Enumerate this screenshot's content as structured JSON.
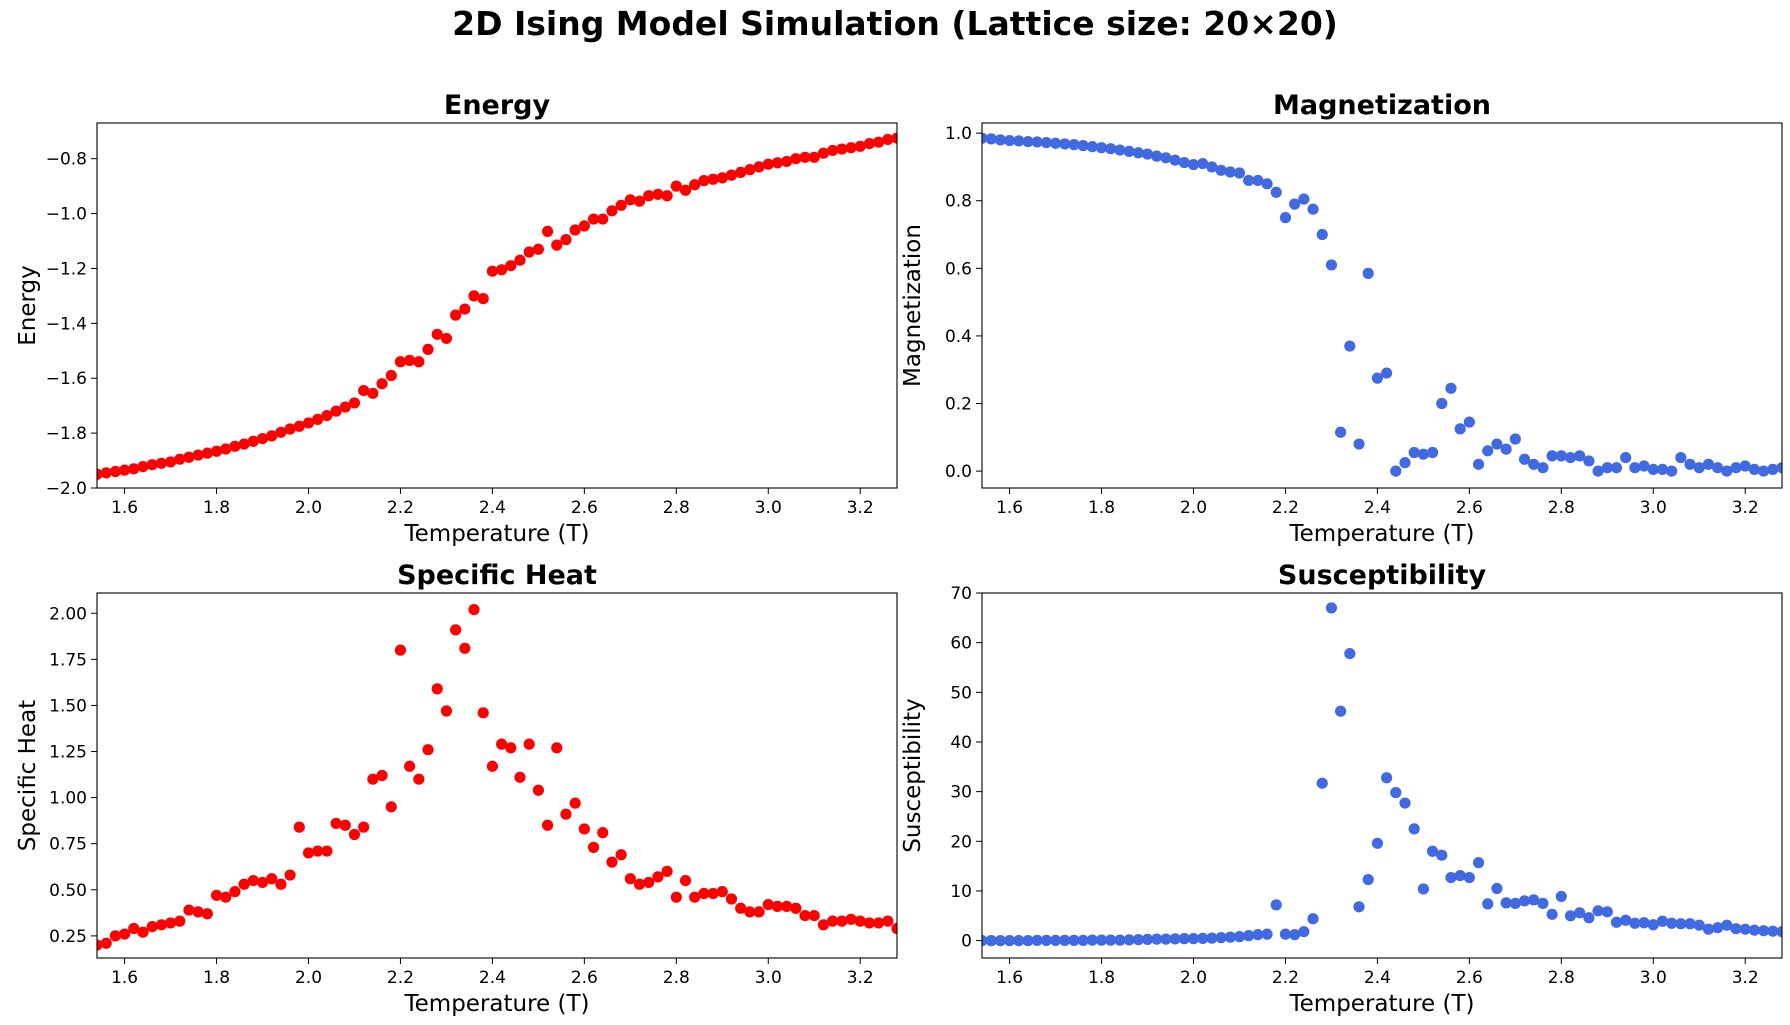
{
  "figure": {
    "suptitle": "2D Ising Model Simulation (Lattice size: 20×20)"
  },
  "chart_data": [
    {
      "type": "scatter",
      "title": "Energy",
      "xlabel": "Temperature (T)",
      "ylabel": "Energy",
      "xlim": [
        1.54,
        3.28
      ],
      "ylim": [
        -2.0,
        -0.67
      ],
      "xticks": [
        "1.6",
        "1.8",
        "2.0",
        "2.2",
        "2.4",
        "2.6",
        "2.8",
        "3.0",
        "3.2"
      ],
      "xtick_values": [
        1.6,
        1.8,
        2.0,
        2.2,
        2.4,
        2.6,
        2.8,
        3.0,
        3.2
      ],
      "yticks": [
        "−2.0",
        "−1.8",
        "−1.6",
        "−1.4",
        "−1.2",
        "−1.0",
        "−0.8"
      ],
      "ytick_values": [
        -2.0,
        -1.8,
        -1.6,
        -1.4,
        -1.2,
        -1.0,
        -0.8
      ],
      "color": "#ff0000",
      "x": [
        1.54,
        1.56,
        1.58,
        1.6,
        1.62,
        1.64,
        1.66,
        1.68,
        1.7,
        1.72,
        1.74,
        1.76,
        1.78,
        1.8,
        1.82,
        1.84,
        1.86,
        1.88,
        1.9,
        1.92,
        1.94,
        1.96,
        1.98,
        2.0,
        2.02,
        2.04,
        2.06,
        2.08,
        2.1,
        2.12,
        2.14,
        2.16,
        2.18,
        2.2,
        2.22,
        2.24,
        2.26,
        2.28,
        2.3,
        2.32,
        2.34,
        2.36,
        2.38,
        2.4,
        2.42,
        2.44,
        2.46,
        2.48,
        2.5,
        2.52,
        2.54,
        2.56,
        2.58,
        2.6,
        2.62,
        2.64,
        2.66,
        2.68,
        2.7,
        2.72,
        2.74,
        2.76,
        2.78,
        2.8,
        2.82,
        2.84,
        2.86,
        2.88,
        2.9,
        2.92,
        2.94,
        2.96,
        2.98,
        3.0,
        3.02,
        3.04,
        3.06,
        3.08,
        3.1,
        3.12,
        3.14,
        3.16,
        3.18,
        3.2,
        3.22,
        3.24,
        3.26,
        3.28
      ],
      "y": [
        -1.95,
        -1.945,
        -1.94,
        -1.935,
        -1.93,
        -1.922,
        -1.915,
        -1.91,
        -1.905,
        -1.895,
        -1.888,
        -1.88,
        -1.873,
        -1.866,
        -1.858,
        -1.848,
        -1.84,
        -1.83,
        -1.82,
        -1.81,
        -1.797,
        -1.785,
        -1.775,
        -1.763,
        -1.75,
        -1.736,
        -1.72,
        -1.705,
        -1.69,
        -1.645,
        -1.655,
        -1.62,
        -1.59,
        -1.54,
        -1.535,
        -1.54,
        -1.495,
        -1.44,
        -1.455,
        -1.37,
        -1.348,
        -1.3,
        -1.31,
        -1.21,
        -1.205,
        -1.19,
        -1.17,
        -1.14,
        -1.13,
        -1.065,
        -1.115,
        -1.095,
        -1.06,
        -1.045,
        -1.02,
        -1.02,
        -0.99,
        -0.97,
        -0.95,
        -0.955,
        -0.935,
        -0.93,
        -0.935,
        -0.9,
        -0.915,
        -0.895,
        -0.88,
        -0.875,
        -0.87,
        -0.86,
        -0.85,
        -0.84,
        -0.83,
        -0.82,
        -0.815,
        -0.81,
        -0.8,
        -0.795,
        -0.795,
        -0.78,
        -0.77,
        -0.765,
        -0.76,
        -0.755,
        -0.745,
        -0.74,
        -0.73,
        -0.725
      ]
    },
    {
      "type": "scatter",
      "title": "Magnetization",
      "xlabel": "Temperature (T)",
      "ylabel": "Magnetization",
      "xlim": [
        1.54,
        3.28
      ],
      "ylim": [
        -0.05,
        1.03
      ],
      "xticks": [
        "1.6",
        "1.8",
        "2.0",
        "2.2",
        "2.4",
        "2.6",
        "2.8",
        "3.0",
        "3.2"
      ],
      "xtick_values": [
        1.6,
        1.8,
        2.0,
        2.2,
        2.4,
        2.6,
        2.8,
        3.0,
        3.2
      ],
      "yticks": [
        "0.0",
        "0.2",
        "0.4",
        "0.6",
        "0.8",
        "1.0"
      ],
      "ytick_values": [
        0.0,
        0.2,
        0.4,
        0.6,
        0.8,
        1.0
      ],
      "color": "#4169e1",
      "x": [
        1.54,
        1.56,
        1.58,
        1.6,
        1.62,
        1.64,
        1.66,
        1.68,
        1.7,
        1.72,
        1.74,
        1.76,
        1.78,
        1.8,
        1.82,
        1.84,
        1.86,
        1.88,
        1.9,
        1.92,
        1.94,
        1.96,
        1.98,
        2.0,
        2.02,
        2.04,
        2.06,
        2.08,
        2.1,
        2.12,
        2.14,
        2.16,
        2.18,
        2.2,
        2.22,
        2.24,
        2.26,
        2.28,
        2.3,
        2.32,
        2.34,
        2.36,
        2.38,
        2.4,
        2.42,
        2.44,
        2.46,
        2.48,
        2.5,
        2.52,
        2.54,
        2.56,
        2.58,
        2.6,
        2.62,
        2.64,
        2.66,
        2.68,
        2.7,
        2.72,
        2.74,
        2.76,
        2.78,
        2.8,
        2.82,
        2.84,
        2.86,
        2.88,
        2.9,
        2.92,
        2.94,
        2.96,
        2.98,
        3.0,
        3.02,
        3.04,
        3.06,
        3.08,
        3.1,
        3.12,
        3.14,
        3.16,
        3.18,
        3.2,
        3.22,
        3.24,
        3.26,
        3.28
      ],
      "y": [
        0.985,
        0.983,
        0.98,
        0.978,
        0.977,
        0.975,
        0.974,
        0.972,
        0.97,
        0.968,
        0.966,
        0.963,
        0.96,
        0.957,
        0.954,
        0.95,
        0.946,
        0.942,
        0.938,
        0.932,
        0.927,
        0.92,
        0.913,
        0.907,
        0.91,
        0.9,
        0.89,
        0.885,
        0.882,
        0.86,
        0.86,
        0.85,
        0.825,
        0.75,
        0.79,
        0.805,
        0.775,
        0.7,
        0.61,
        0.115,
        0.37,
        0.08,
        0.585,
        0.275,
        0.29,
        0.0,
        0.025,
        0.055,
        0.05,
        0.055,
        0.2,
        0.245,
        0.125,
        0.145,
        0.02,
        0.06,
        0.08,
        0.065,
        0.095,
        0.035,
        0.02,
        0.01,
        0.045,
        0.045,
        0.04,
        0.045,
        0.03,
        0.0,
        0.01,
        0.01,
        0.04,
        0.01,
        0.015,
        0.005,
        0.005,
        0.0,
        0.04,
        0.02,
        0.01,
        0.02,
        0.01,
        0.0,
        0.01,
        0.015,
        0.005,
        0.0,
        0.005,
        0.01
      ]
    },
    {
      "type": "scatter",
      "title": "Specific Heat",
      "xlabel": "Temperature (T)",
      "ylabel": "Specific Heat",
      "xlim": [
        1.54,
        3.28
      ],
      "ylim": [
        0.13,
        2.11
      ],
      "xticks": [
        "1.6",
        "1.8",
        "2.0",
        "2.2",
        "2.4",
        "2.6",
        "2.8",
        "3.0",
        "3.2"
      ],
      "xtick_values": [
        1.6,
        1.8,
        2.0,
        2.2,
        2.4,
        2.6,
        2.8,
        3.0,
        3.2
      ],
      "yticks": [
        "0.25",
        "0.50",
        "0.75",
        "1.00",
        "1.25",
        "1.50",
        "1.75",
        "2.00"
      ],
      "ytick_values": [
        0.25,
        0.5,
        0.75,
        1.0,
        1.25,
        1.5,
        1.75,
        2.0
      ],
      "color": "#ff0000",
      "x": [
        1.54,
        1.56,
        1.58,
        1.6,
        1.62,
        1.64,
        1.66,
        1.68,
        1.7,
        1.72,
        1.74,
        1.76,
        1.78,
        1.8,
        1.82,
        1.84,
        1.86,
        1.88,
        1.9,
        1.92,
        1.94,
        1.96,
        1.98,
        2.0,
        2.02,
        2.04,
        2.06,
        2.08,
        2.1,
        2.12,
        2.14,
        2.16,
        2.18,
        2.2,
        2.22,
        2.24,
        2.26,
        2.28,
        2.3,
        2.32,
        2.34,
        2.36,
        2.38,
        2.4,
        2.42,
        2.44,
        2.46,
        2.48,
        2.5,
        2.52,
        2.54,
        2.56,
        2.58,
        2.6,
        2.62,
        2.64,
        2.66,
        2.68,
        2.7,
        2.72,
        2.74,
        2.76,
        2.78,
        2.8,
        2.82,
        2.84,
        2.86,
        2.88,
        2.9,
        2.92,
        2.94,
        2.96,
        2.98,
        3.0,
        3.02,
        3.04,
        3.06,
        3.08,
        3.1,
        3.12,
        3.14,
        3.16,
        3.18,
        3.2,
        3.22,
        3.24,
        3.26,
        3.28
      ],
      "y": [
        0.2,
        0.21,
        0.25,
        0.26,
        0.29,
        0.27,
        0.3,
        0.31,
        0.32,
        0.33,
        0.39,
        0.38,
        0.37,
        0.47,
        0.46,
        0.49,
        0.53,
        0.55,
        0.54,
        0.56,
        0.53,
        0.58,
        0.84,
        0.7,
        0.71,
        0.71,
        0.86,
        0.85,
        0.8,
        0.84,
        1.1,
        1.12,
        0.95,
        1.8,
        1.17,
        1.1,
        1.26,
        1.59,
        1.47,
        1.91,
        1.81,
        2.02,
        1.46,
        1.17,
        1.29,
        1.27,
        1.11,
        1.29,
        1.04,
        0.85,
        1.27,
        0.91,
        0.97,
        0.83,
        0.73,
        0.81,
        0.65,
        0.69,
        0.56,
        0.53,
        0.54,
        0.57,
        0.6,
        0.46,
        0.55,
        0.46,
        0.48,
        0.48,
        0.49,
        0.45,
        0.4,
        0.38,
        0.38,
        0.42,
        0.41,
        0.41,
        0.4,
        0.36,
        0.36,
        0.31,
        0.33,
        0.33,
        0.34,
        0.33,
        0.32,
        0.32,
        0.33,
        0.29
      ]
    },
    {
      "type": "scatter",
      "title": "Susceptibility",
      "xlabel": "Temperature (T)",
      "ylabel": "Susceptibility",
      "xlim": [
        1.54,
        3.28
      ],
      "ylim": [
        -3.5,
        70
      ],
      "xticks": [
        "1.6",
        "1.8",
        "2.0",
        "2.2",
        "2.4",
        "2.6",
        "2.8",
        "3.0",
        "3.2"
      ],
      "xtick_values": [
        1.6,
        1.8,
        2.0,
        2.2,
        2.4,
        2.6,
        2.8,
        3.0,
        3.2
      ],
      "yticks": [
        "0",
        "10",
        "20",
        "30",
        "40",
        "50",
        "60",
        "70"
      ],
      "ytick_values": [
        0,
        10,
        20,
        30,
        40,
        50,
        60,
        70
      ],
      "color": "#4169e1",
      "x": [
        1.54,
        1.56,
        1.58,
        1.6,
        1.62,
        1.64,
        1.66,
        1.68,
        1.7,
        1.72,
        1.74,
        1.76,
        1.78,
        1.8,
        1.82,
        1.84,
        1.86,
        1.88,
        1.9,
        1.92,
        1.94,
        1.96,
        1.98,
        2.0,
        2.02,
        2.04,
        2.06,
        2.08,
        2.1,
        2.12,
        2.14,
        2.16,
        2.18,
        2.2,
        2.22,
        2.24,
        2.26,
        2.28,
        2.3,
        2.32,
        2.34,
        2.36,
        2.38,
        2.4,
        2.42,
        2.44,
        2.46,
        2.48,
        2.5,
        2.52,
        2.54,
        2.56,
        2.58,
        2.6,
        2.62,
        2.64,
        2.66,
        2.68,
        2.7,
        2.72,
        2.74,
        2.76,
        2.78,
        2.8,
        2.82,
        2.84,
        2.86,
        2.88,
        2.9,
        2.92,
        2.94,
        2.96,
        2.98,
        3.0,
        3.02,
        3.04,
        3.06,
        3.08,
        3.1,
        3.12,
        3.14,
        3.16,
        3.18,
        3.2,
        3.22,
        3.24,
        3.26,
        3.28
      ],
      "y": [
        0.0,
        0.0,
        0.0,
        0.0,
        0.0,
        0.0,
        0.05,
        0.05,
        0.05,
        0.05,
        0.05,
        0.05,
        0.1,
        0.1,
        0.1,
        0.1,
        0.15,
        0.2,
        0.25,
        0.3,
        0.3,
        0.35,
        0.4,
        0.4,
        0.45,
        0.5,
        0.6,
        0.7,
        0.8,
        1.0,
        1.2,
        1.3,
        7.2,
        1.3,
        1.2,
        1.8,
        4.4,
        31.7,
        67.0,
        46.2,
        57.8,
        6.8,
        12.3,
        19.6,
        32.8,
        29.8,
        27.7,
        22.5,
        10.4,
        18.0,
        17.2,
        12.7,
        13.1,
        12.7,
        15.7,
        7.4,
        10.5,
        7.6,
        7.5,
        8.0,
        8.2,
        7.5,
        5.3,
        8.9,
        5.0,
        5.6,
        4.6,
        6.0,
        5.8,
        3.7,
        4.1,
        3.5,
        3.6,
        3.2,
        3.9,
        3.5,
        3.4,
        3.4,
        3.1,
        2.3,
        2.6,
        3.1,
        2.4,
        2.3,
        2.1,
        2.0,
        1.9,
        1.8
      ]
    }
  ]
}
